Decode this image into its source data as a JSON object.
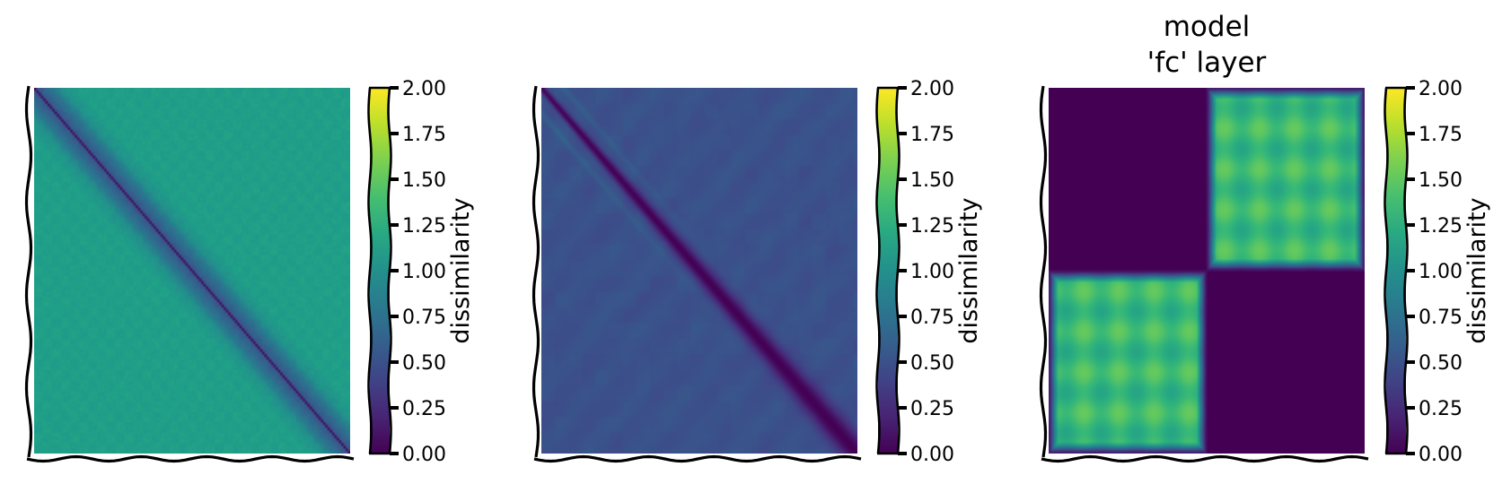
{
  "chart_data": [
    {
      "type": "heatmap",
      "pattern": "diagonal",
      "title": [],
      "colormap": "viridis",
      "vmin": 0,
      "vmax": 2,
      "values": {
        "diagonal": 0.0,
        "near_diagonal": 0.55,
        "background": 1.12
      },
      "colorbar": {
        "label": "dissimilarity",
        "ticks": [
          "0.00",
          "0.25",
          "0.50",
          "0.75",
          "1.00",
          "1.25",
          "1.50",
          "1.75",
          "2.00"
        ]
      }
    },
    {
      "type": "heatmap",
      "pattern": "band",
      "title": [],
      "colormap": "viridis",
      "vmin": 0,
      "vmax": 2,
      "values": {
        "diagonal": 0.0,
        "side_lines": 0.7,
        "background": 0.5
      },
      "colorbar": {
        "label": "dissimilarity",
        "ticks": [
          "0.00",
          "0.25",
          "0.50",
          "0.75",
          "1.00",
          "1.25",
          "1.50",
          "1.75",
          "2.00"
        ]
      }
    },
    {
      "type": "heatmap",
      "pattern": "block",
      "title": [
        "model",
        "'fc' layer"
      ],
      "colormap": "viridis",
      "vmin": 0,
      "vmax": 2,
      "values": {
        "same_block": 0.0,
        "cross_block": 1.35
      },
      "colorbar": {
        "label": "dissimilarity",
        "ticks": [
          "0.00",
          "0.25",
          "0.50",
          "0.75",
          "1.00",
          "1.25",
          "1.50",
          "1.75",
          "2.00"
        ]
      }
    }
  ]
}
